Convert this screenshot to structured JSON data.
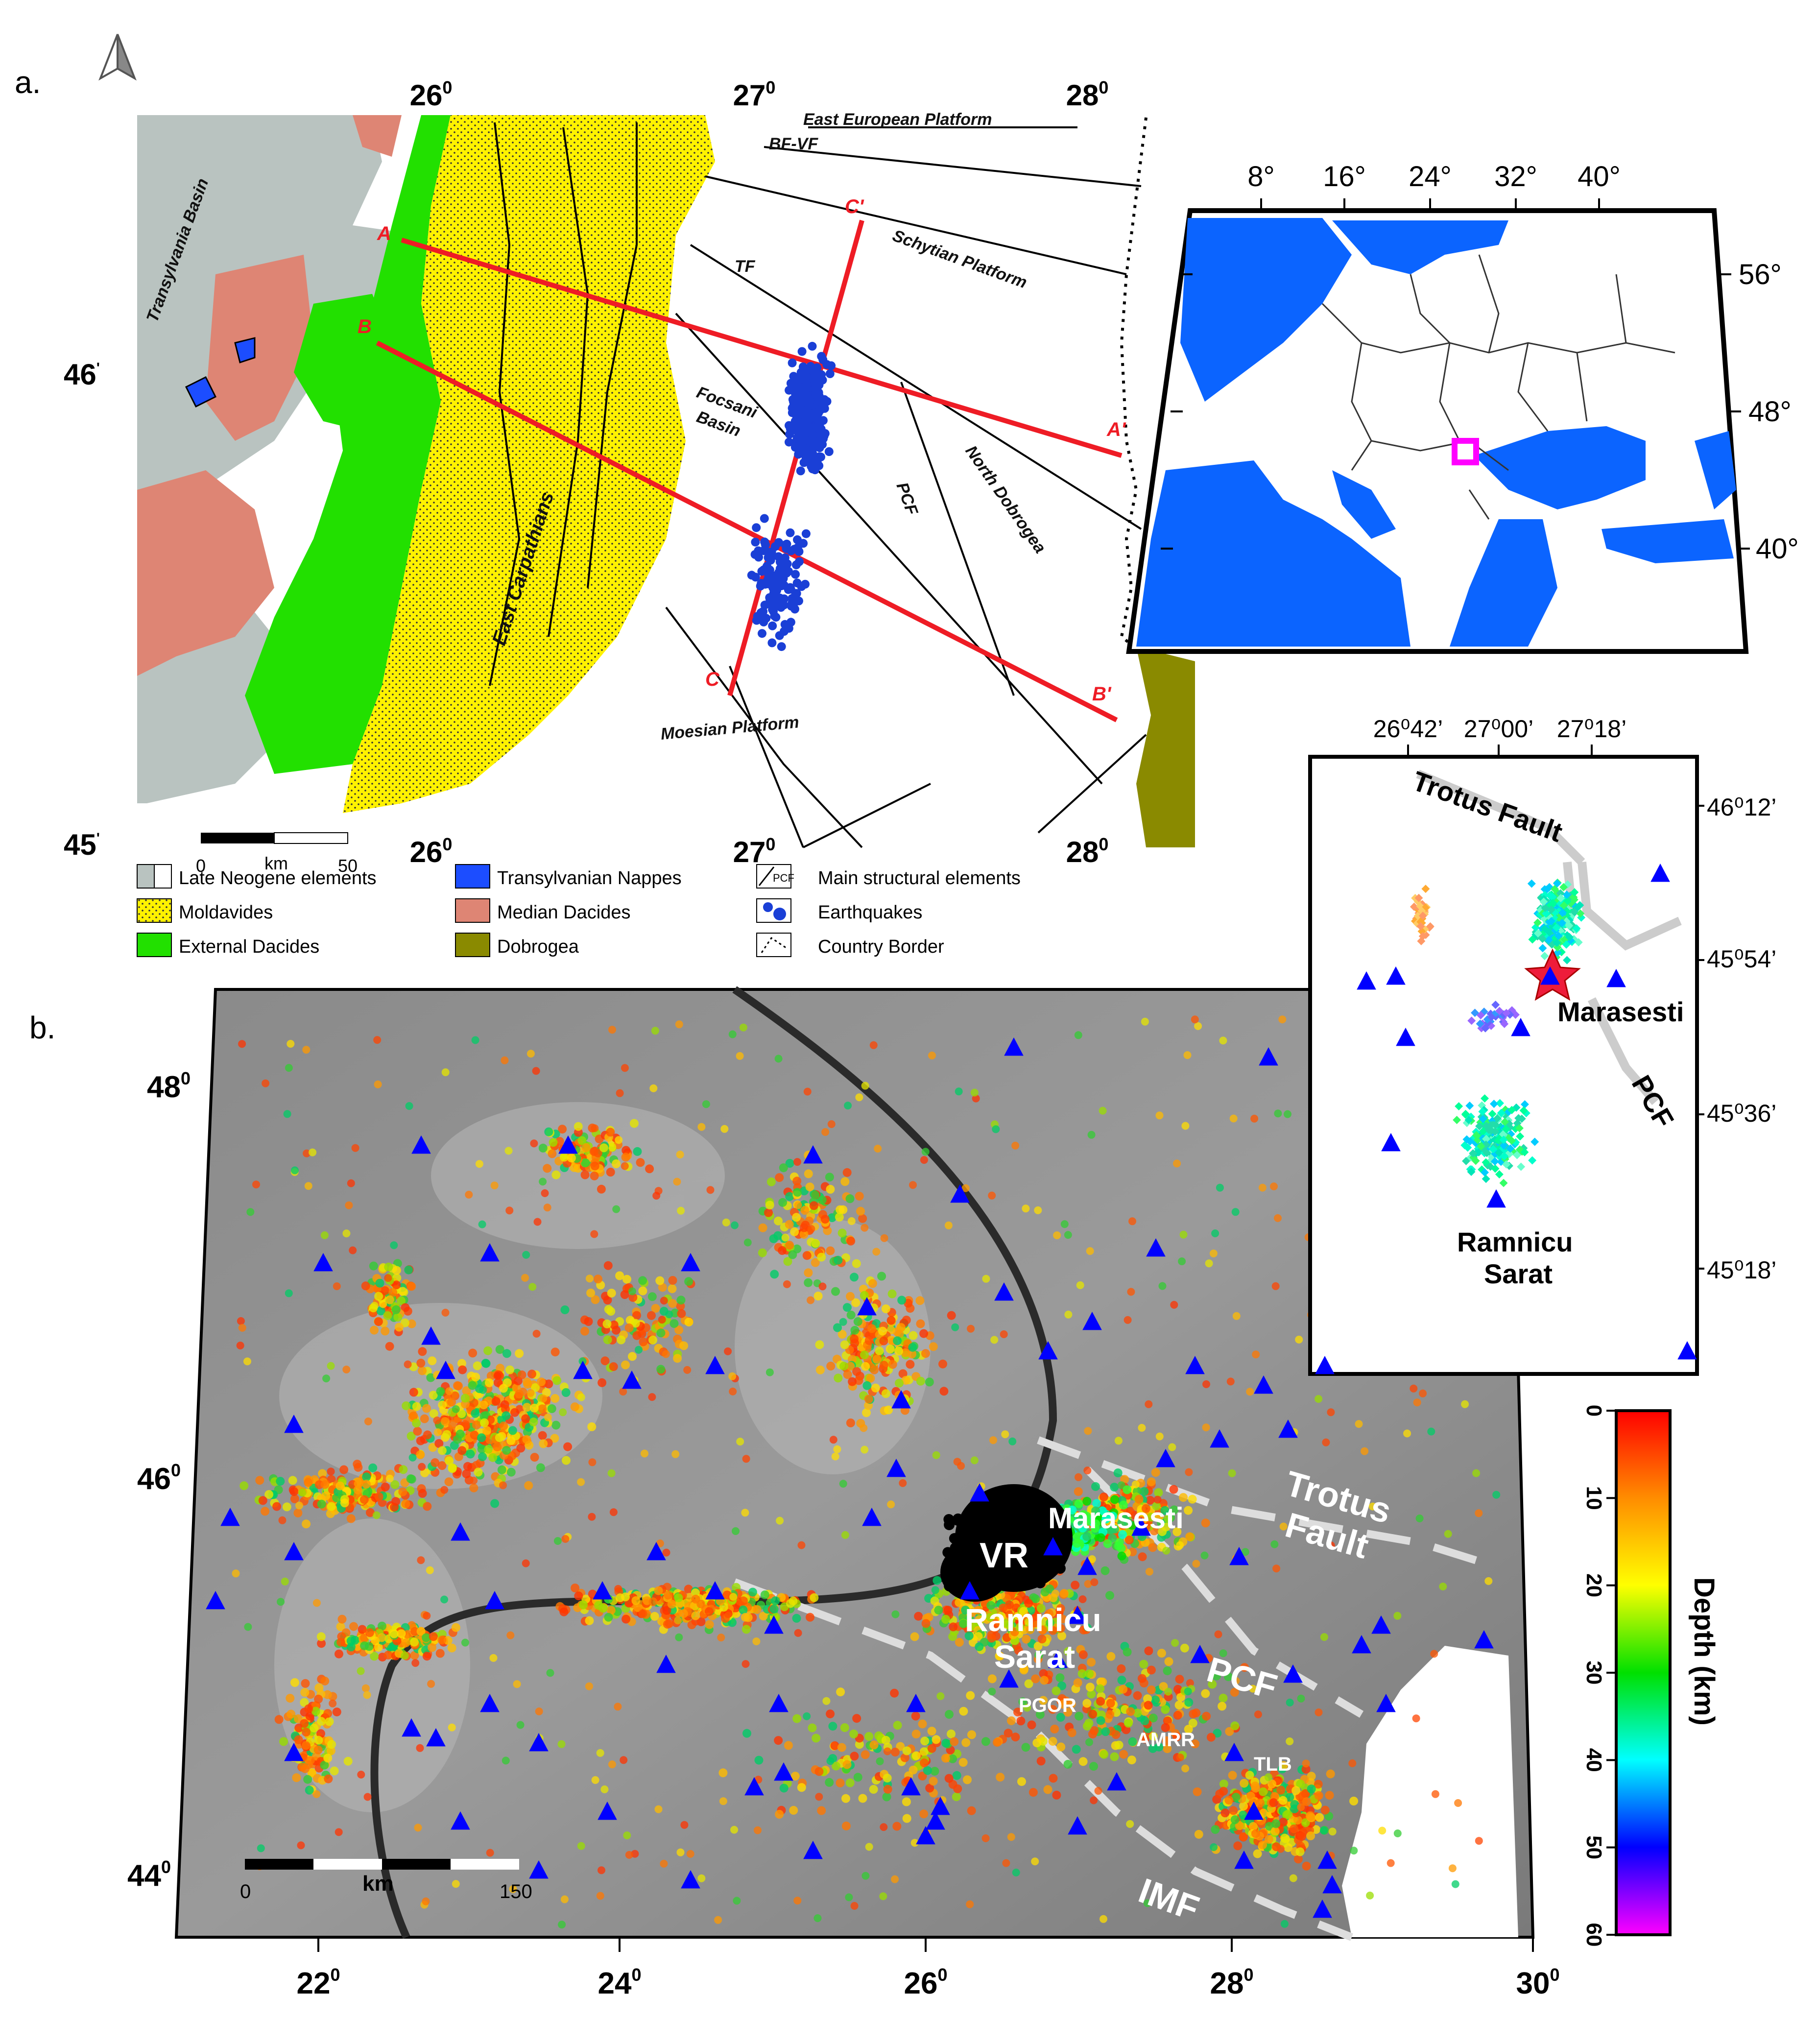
{
  "panel_a": {
    "panel_label": "a.",
    "lon_top": [
      "26",
      "27",
      "28"
    ],
    "lon_bottom": [
      "26",
      "27",
      "28"
    ],
    "deg_sup": "0",
    "lat_left": [
      {
        "v": "46",
        "s": "'"
      },
      {
        "v": "45",
        "s": "'"
      }
    ],
    "regions": {
      "transylvania": "Transylvania Basin",
      "east_carpathians": "East Carpathians",
      "focsani1": "Focsani",
      "focsani2": "Basin",
      "east_european": "East European Platform",
      "schytian": "Schytian Platform",
      "moesian": "Moesian Platform",
      "north_dobrogea": "North Dobrogea"
    },
    "faults": {
      "bf_vf": "BF-VF",
      "tf": "TF",
      "pcf": "PCF"
    },
    "profiles": {
      "a": "A",
      "a2": "A'",
      "b": "B",
      "b2": "B'",
      "c": "C",
      "c2": "C'"
    },
    "scale": {
      "zero": "0",
      "unit": "km",
      "max": "50"
    },
    "legend": [
      {
        "id": "late-neogene",
        "label": "Late Neogene elements"
      },
      {
        "id": "moldavides",
        "label": "Moldavides"
      },
      {
        "id": "external-dacides",
        "label": "External Dacides"
      },
      {
        "id": "transylvanian-nappes",
        "label": "Transylvanian Nappes"
      },
      {
        "id": "median-dacides",
        "label": "Median Dacides"
      },
      {
        "id": "dobrogea",
        "label": "Dobrogea"
      },
      {
        "id": "structural",
        "label": "Main structural elements",
        "sample": "PCF"
      },
      {
        "id": "earthquakes",
        "label": "Earthquakes"
      },
      {
        "id": "border",
        "label": "Country Border"
      }
    ],
    "colors": {
      "neogene": "#b9c3c0",
      "moldavides": "#fff200",
      "external": "#22e000",
      "transylvanian": "#1c4dff",
      "median": "#de8574",
      "dobrogea": "#8a8a00",
      "profile": "#ee1c25",
      "quake": "#1a3fd6"
    }
  },
  "inset_europe": {
    "lon": [
      "8°",
      "16°",
      "24°",
      "32°",
      "40°"
    ],
    "lat": [
      "56°",
      "48°",
      "40°"
    ],
    "colors": {
      "sea": "#0b64ff",
      "marker": "#ff00ff"
    }
  },
  "inset_zoom": {
    "lon": [
      "26⁰42’",
      "27⁰00’",
      "27⁰18’"
    ],
    "lat": [
      "46⁰12’",
      "45⁰54’",
      "45⁰36’",
      "45⁰18’"
    ],
    "labels": {
      "trotus": "Trotus Fault",
      "marasesti": "Marasesti",
      "pcf": "PCF",
      "ramnicu1": "Ramnicu",
      "ramnicu2": "Sarat"
    }
  },
  "panel_b": {
    "panel_label": "b.",
    "lat": [
      {
        "v": "48",
        "s": "0"
      },
      {
        "v": "46",
        "s": "0"
      },
      {
        "v": "44",
        "s": "0"
      }
    ],
    "lon": [
      {
        "v": "22",
        "s": "0"
      },
      {
        "v": "24",
        "s": "0"
      },
      {
        "v": "26",
        "s": "0"
      },
      {
        "v": "28",
        "s": "0"
      },
      {
        "v": "30",
        "s": "0"
      }
    ],
    "labels": {
      "marasesti": "Marasesti",
      "vr": "VR",
      "ramnicu1": "Ramnicu",
      "ramnicu2": "Sarat",
      "trotus1": "Trotus",
      "trotus2": "Fault",
      "pcf": "PCF",
      "imf": "IMF",
      "pgor": "PGOR",
      "amrr": "AMRR",
      "tlb": "TLB"
    },
    "scale": {
      "zero": "0",
      "unit": "km",
      "max": "150"
    },
    "colorbar": {
      "title": "Depth (km)",
      "ticks": [
        "0",
        "10",
        "20",
        "30",
        "40",
        "50",
        "60"
      ],
      "stops": [
        "#ff0000",
        "#ff8c00",
        "#ffff00",
        "#00e000",
        "#00ffff",
        "#0000ff",
        "#ff00ff"
      ]
    }
  }
}
